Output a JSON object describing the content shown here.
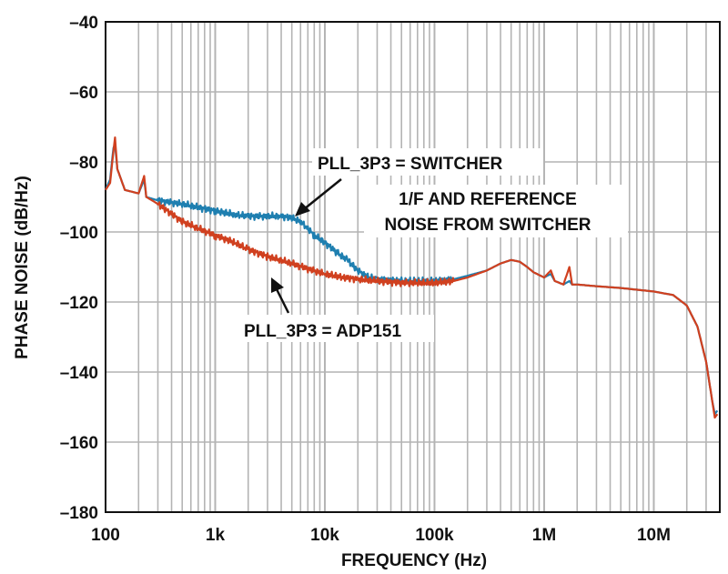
{
  "chart_data": {
    "type": "line",
    "title": "",
    "xlabel": "FREQUENCY (Hz)",
    "ylabel": "PHASE NOISE (dB/Hz)",
    "xscale": "log",
    "xlim": [
      100,
      40000000
    ],
    "ylim": [
      -180,
      -40
    ],
    "grid": true,
    "x_ticks": [
      {
        "value": 100,
        "label": "100"
      },
      {
        "value": 1000,
        "label": "1k"
      },
      {
        "value": 10000,
        "label": "10k"
      },
      {
        "value": 100000,
        "label": "100k"
      },
      {
        "value": 1000000,
        "label": "1M"
      },
      {
        "value": 10000000,
        "label": "10M"
      }
    ],
    "y_ticks": [
      {
        "value": -40,
        "label": "–40"
      },
      {
        "value": -60,
        "label": "–60"
      },
      {
        "value": -80,
        "label": "–80"
      },
      {
        "value": -100,
        "label": "–100"
      },
      {
        "value": -120,
        "label": "–120"
      },
      {
        "value": -140,
        "label": "–140"
      },
      {
        "value": -160,
        "label": "–160"
      },
      {
        "value": -180,
        "label": "–180"
      }
    ],
    "series": [
      {
        "key": "switcher",
        "color": "#1e7fb0",
        "points": [
          [
            100,
            -88
          ],
          [
            110,
            -85
          ],
          [
            118,
            -76
          ],
          [
            122,
            -75
          ],
          [
            128,
            -82
          ],
          [
            150,
            -88
          ],
          [
            200,
            -89
          ],
          [
            225,
            -85
          ],
          [
            235,
            -90
          ],
          [
            300,
            -91
          ],
          [
            500,
            -92
          ],
          [
            700,
            -93
          ],
          [
            1000,
            -94
          ],
          [
            1500,
            -95
          ],
          [
            2000,
            -95.5
          ],
          [
            3000,
            -95.5
          ],
          [
            4000,
            -95.5
          ],
          [
            5000,
            -96
          ],
          [
            6000,
            -97
          ],
          [
            7000,
            -99
          ],
          [
            8000,
            -101
          ],
          [
            10000,
            -103
          ],
          [
            13000,
            -106
          ],
          [
            16000,
            -108
          ],
          [
            20000,
            -111
          ],
          [
            25000,
            -113
          ],
          [
            30000,
            -113.5
          ],
          [
            50000,
            -114
          ],
          [
            100000,
            -114
          ],
          [
            150000,
            -113.5
          ],
          [
            200000,
            -112.5
          ],
          [
            300000,
            -111
          ],
          [
            400000,
            -109
          ],
          [
            500000,
            -108
          ],
          [
            600000,
            -108.5
          ],
          [
            700000,
            -110
          ],
          [
            800000,
            -111.5
          ],
          [
            1000000,
            -113
          ],
          [
            1150000,
            -112
          ],
          [
            1250000,
            -114
          ],
          [
            1500000,
            -115
          ],
          [
            1700000,
            -114
          ],
          [
            1800000,
            -115
          ],
          [
            2000000,
            -115
          ],
          [
            3000000,
            -115.5
          ],
          [
            5000000,
            -116
          ],
          [
            10000000,
            -117
          ],
          [
            15000000,
            -118
          ],
          [
            20000000,
            -121
          ],
          [
            25000000,
            -127
          ],
          [
            30000000,
            -137
          ],
          [
            34000000,
            -148
          ],
          [
            36000000,
            -152
          ],
          [
            38000000,
            -151
          ]
        ]
      },
      {
        "key": "adp151",
        "color": "#d0401f",
        "points": [
          [
            100,
            -88
          ],
          [
            110,
            -86
          ],
          [
            118,
            -77
          ],
          [
            122,
            -73
          ],
          [
            128,
            -82
          ],
          [
            150,
            -88
          ],
          [
            200,
            -89
          ],
          [
            225,
            -84
          ],
          [
            235,
            -90
          ],
          [
            300,
            -92
          ],
          [
            500,
            -97
          ],
          [
            700,
            -99
          ],
          [
            1000,
            -101
          ],
          [
            1500,
            -103
          ],
          [
            2000,
            -105
          ],
          [
            3000,
            -107
          ],
          [
            5000,
            -109
          ],
          [
            7000,
            -110.5
          ],
          [
            10000,
            -112
          ],
          [
            15000,
            -113
          ],
          [
            20000,
            -113.5
          ],
          [
            30000,
            -114
          ],
          [
            50000,
            -114.5
          ],
          [
            100000,
            -114.5
          ],
          [
            150000,
            -114
          ],
          [
            200000,
            -113
          ],
          [
            300000,
            -111
          ],
          [
            400000,
            -109
          ],
          [
            500000,
            -108
          ],
          [
            600000,
            -108.5
          ],
          [
            700000,
            -110
          ],
          [
            800000,
            -111.5
          ],
          [
            1000000,
            -113
          ],
          [
            1150000,
            -111
          ],
          [
            1250000,
            -114
          ],
          [
            1500000,
            -115
          ],
          [
            1700000,
            -110
          ],
          [
            1800000,
            -115
          ],
          [
            2000000,
            -115
          ],
          [
            3000000,
            -115.5
          ],
          [
            5000000,
            -116
          ],
          [
            10000000,
            -117
          ],
          [
            15000000,
            -118
          ],
          [
            20000000,
            -121
          ],
          [
            25000000,
            -127
          ],
          [
            30000000,
            -137
          ],
          [
            34000000,
            -148
          ],
          [
            36000000,
            -153
          ],
          [
            38000000,
            -152
          ]
        ]
      }
    ],
    "annotations": {
      "switcher_label": "PLL_3P3 = SWITCHER",
      "adp151_label": "PLL_3P3 = ADP151",
      "note_line1": "1/F AND REFERENCE",
      "note_line2": "NOISE FROM SWITCHER"
    }
  }
}
